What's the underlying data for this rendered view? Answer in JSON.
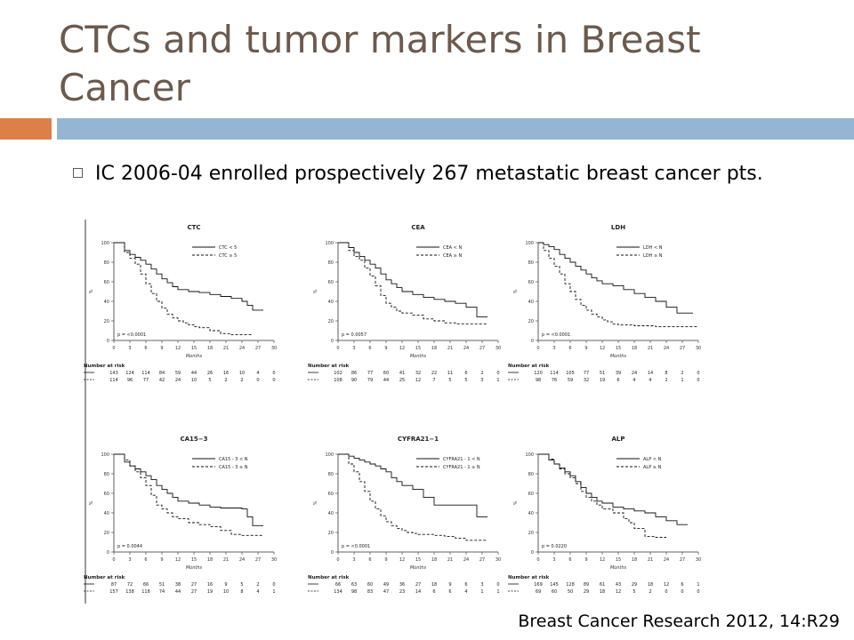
{
  "slide": {
    "title": "CTCs and tumor markers in Breast Cancer",
    "bullet": "IC 2006-04 enrolled prospectively 267 metastatic breast cancer pts.",
    "citation": "Breast Cancer Research 2012, 14:R29",
    "colors": {
      "title": "#6b5a4e",
      "accent_orange": "#dd8047",
      "accent_blue": "#94b6d2"
    }
  },
  "chart_data": [
    {
      "type": "line",
      "title": "CTC",
      "xlabel": "Months",
      "ylabel": "%",
      "xlim": [
        0,
        30
      ],
      "ylim": [
        0,
        100
      ],
      "grid": false,
      "legend_position": "top-right",
      "x_ticks": [
        "0",
        "3",
        "6",
        "9",
        "12",
        "15",
        "18",
        "21",
        "24",
        "27",
        "30"
      ],
      "y_ticks": [
        "0",
        "20",
        "40",
        "60",
        "80",
        "100"
      ],
      "p_value": "p = <0.0001",
      "series": [
        {
          "name": "CTC < 5",
          "dash": "solid",
          "x": [
            0,
            2,
            3,
            4,
            5,
            6,
            7,
            8,
            9,
            10,
            11,
            12,
            14,
            16,
            18,
            20,
            22,
            24,
            25,
            26,
            28
          ],
          "y": [
            100,
            92,
            88,
            85,
            82,
            78,
            73,
            68,
            63,
            59,
            55,
            52,
            50,
            49,
            47,
            45,
            43,
            40,
            36,
            31,
            31
          ]
        },
        {
          "name": "CTC ≥ 5",
          "dash": "dashed",
          "x": [
            0,
            2,
            3,
            4,
            5,
            6,
            7,
            8,
            9,
            10,
            11,
            12,
            13,
            14,
            15,
            16,
            18,
            20,
            22,
            24,
            26
          ],
          "y": [
            100,
            90,
            84,
            78,
            68,
            58,
            48,
            40,
            33,
            27,
            23,
            20,
            18,
            16,
            14,
            13,
            10,
            7,
            6,
            6,
            6
          ]
        }
      ],
      "risk_label": "Number at risk",
      "risk_rows": [
        [
          "143",
          "124",
          "114",
          "84",
          "59",
          "44",
          "26",
          "16",
          "10",
          "4",
          "0"
        ],
        [
          "114",
          "96",
          "77",
          "42",
          "24",
          "10",
          "5",
          "2",
          "2",
          "0",
          "0"
        ]
      ]
    },
    {
      "type": "line",
      "title": "CEA",
      "xlabel": "Months",
      "ylabel": "%",
      "xlim": [
        0,
        30
      ],
      "ylim": [
        0,
        100
      ],
      "grid": false,
      "legend_position": "top-right",
      "x_ticks": [
        "0",
        "3",
        "6",
        "9",
        "12",
        "15",
        "18",
        "21",
        "24",
        "27",
        "30"
      ],
      "y_ticks": [
        "0",
        "20",
        "40",
        "60",
        "80",
        "100"
      ],
      "p_value": "p = 0.0057",
      "series": [
        {
          "name": "CEA < N",
          "dash": "solid",
          "x": [
            0,
            2,
            3,
            4,
            5,
            6,
            7,
            8,
            9,
            10,
            11,
            12,
            14,
            16,
            18,
            20,
            22,
            24,
            26,
            28
          ],
          "y": [
            100,
            95,
            90,
            86,
            82,
            78,
            74,
            68,
            62,
            58,
            54,
            50,
            47,
            44,
            42,
            40,
            38,
            34,
            24,
            24
          ]
        },
        {
          "name": "CEA ≥ N",
          "dash": "dashed",
          "x": [
            0,
            2,
            3,
            4,
            5,
            6,
            7,
            8,
            9,
            10,
            11,
            12,
            14,
            16,
            18,
            20,
            22,
            24,
            26,
            28
          ],
          "y": [
            100,
            92,
            86,
            82,
            74,
            66,
            56,
            46,
            38,
            34,
            30,
            28,
            26,
            22,
            20,
            18,
            17,
            17,
            17,
            17
          ]
        }
      ],
      "risk_label": "Number at risk",
      "risk_rows": [
        [
          "102",
          "86",
          "77",
          "60",
          "41",
          "32",
          "22",
          "11",
          "6",
          "2",
          "0"
        ],
        [
          "108",
          "90",
          "79",
          "44",
          "25",
          "12",
          "7",
          "5",
          "5",
          "3",
          "1"
        ]
      ]
    },
    {
      "type": "line",
      "title": "LDH",
      "xlabel": "Months",
      "ylabel": "%",
      "xlim": [
        0,
        30
      ],
      "ylim": [
        0,
        100
      ],
      "grid": false,
      "legend_position": "top-right",
      "x_ticks": [
        "0",
        "3",
        "6",
        "9",
        "12",
        "15",
        "18",
        "21",
        "24",
        "27",
        "30"
      ],
      "y_ticks": [
        "0",
        "20",
        "40",
        "60",
        "80",
        "100"
      ],
      "p_value": "p = <0.0001",
      "series": [
        {
          "name": "LDH < N",
          "dash": "solid",
          "x": [
            0,
            1,
            2,
            3,
            4,
            5,
            6,
            7,
            8,
            9,
            10,
            11,
            12,
            14,
            16,
            18,
            20,
            22,
            24,
            26,
            28,
            29
          ],
          "y": [
            100,
            98,
            96,
            93,
            88,
            84,
            80,
            76,
            72,
            68,
            64,
            61,
            58,
            56,
            52,
            48,
            44,
            40,
            34,
            28,
            28,
            28
          ]
        },
        {
          "name": "LDH ≥ N",
          "dash": "dashed",
          "x": [
            0,
            1,
            2,
            3,
            4,
            5,
            6,
            7,
            8,
            9,
            10,
            11,
            12,
            13,
            14,
            15,
            16,
            18,
            20,
            22,
            24,
            27,
            30
          ],
          "y": [
            100,
            92,
            84,
            76,
            68,
            58,
            50,
            42,
            36,
            31,
            27,
            24,
            21,
            19,
            17,
            16,
            16,
            15,
            15,
            14,
            14,
            14,
            14
          ]
        }
      ],
      "risk_label": "Number at risk",
      "risk_rows": [
        [
          "120",
          "114",
          "105",
          "77",
          "51",
          "39",
          "24",
          "14",
          "8",
          "2",
          "0"
        ],
        [
          "98",
          "76",
          "59",
          "32",
          "19",
          "6",
          "4",
          "4",
          "2",
          "1",
          "0"
        ]
      ]
    },
    {
      "type": "line",
      "title": "CA15−3",
      "xlabel": "Months",
      "ylabel": "%",
      "xlim": [
        0,
        30
      ],
      "ylim": [
        0,
        100
      ],
      "grid": false,
      "legend_position": "top-right",
      "x_ticks": [
        "0",
        "3",
        "6",
        "9",
        "12",
        "15",
        "18",
        "21",
        "24",
        "27",
        "30"
      ],
      "y_ticks": [
        "0",
        "20",
        "40",
        "60",
        "80",
        "100"
      ],
      "p_value": "p = 0.0044",
      "series": [
        {
          "name": "CA15 - 3 < N",
          "dash": "solid",
          "x": [
            0,
            2,
            3,
            4,
            5,
            6,
            7,
            8,
            9,
            10,
            11,
            12,
            14,
            16,
            18,
            20,
            22,
            24,
            25,
            26,
            28
          ],
          "y": [
            100,
            92,
            88,
            85,
            82,
            78,
            74,
            68,
            64,
            60,
            56,
            52,
            50,
            48,
            46,
            45,
            45,
            44,
            36,
            27,
            27
          ]
        },
        {
          "name": "CA15 - 3 ≥ N",
          "dash": "dashed",
          "x": [
            0,
            2,
            3,
            4,
            5,
            6,
            7,
            8,
            9,
            10,
            11,
            12,
            14,
            16,
            18,
            20,
            22,
            24,
            26,
            28
          ],
          "y": [
            100,
            94,
            88,
            82,
            76,
            68,
            58,
            48,
            44,
            40,
            36,
            34,
            30,
            28,
            26,
            22,
            18,
            17,
            17,
            17
          ]
        }
      ],
      "risk_label": "Number at risk",
      "risk_rows": [
        [
          "87",
          "72",
          "66",
          "51",
          "38",
          "27",
          "16",
          "9",
          "5",
          "2",
          "0"
        ],
        [
          "157",
          "138",
          "118",
          "74",
          "44",
          "27",
          "19",
          "10",
          "8",
          "4",
          "1"
        ]
      ]
    },
    {
      "type": "line",
      "title": "CYFRA21−1",
      "xlabel": "Months",
      "ylabel": "%",
      "xlim": [
        0,
        30
      ],
      "ylim": [
        0,
        100
      ],
      "grid": false,
      "legend_position": "top-right",
      "x_ticks": [
        "0",
        "3",
        "6",
        "9",
        "12",
        "15",
        "18",
        "21",
        "24",
        "27",
        "30"
      ],
      "y_ticks": [
        "0",
        "20",
        "40",
        "60",
        "80",
        "100"
      ],
      "p_value": "p = <0.0001",
      "series": [
        {
          "name": "CYFRA21 - 1 < N",
          "dash": "solid",
          "x": [
            0,
            2,
            3,
            4,
            5,
            6,
            7,
            8,
            9,
            10,
            11,
            12,
            14,
            16,
            18,
            20,
            22,
            24,
            26,
            28
          ],
          "y": [
            100,
            98,
            96,
            94,
            92,
            90,
            88,
            85,
            82,
            76,
            72,
            68,
            64,
            56,
            48,
            48,
            48,
            48,
            36,
            36
          ]
        },
        {
          "name": "CYFRA21 - 1 ≥ N",
          "dash": "dashed",
          "x": [
            0,
            2,
            3,
            4,
            5,
            6,
            7,
            8,
            9,
            10,
            11,
            12,
            13,
            14,
            15,
            16,
            18,
            20,
            22,
            24,
            26,
            28
          ],
          "y": [
            100,
            90,
            82,
            72,
            62,
            52,
            44,
            37,
            31,
            27,
            24,
            22,
            20,
            19,
            18,
            18,
            17,
            16,
            14,
            12,
            12,
            12
          ]
        }
      ],
      "risk_label": "Number at risk",
      "risk_rows": [
        [
          "66",
          "63",
          "60",
          "49",
          "36",
          "27",
          "18",
          "9",
          "6",
          "3",
          "0"
        ],
        [
          "134",
          "98",
          "83",
          "47",
          "23",
          "14",
          "6",
          "6",
          "4",
          "1",
          "1"
        ]
      ]
    },
    {
      "type": "line",
      "title": "ALP",
      "xlabel": "Months",
      "ylabel": "%",
      "xlim": [
        0,
        30
      ],
      "ylim": [
        0,
        100
      ],
      "grid": false,
      "legend_position": "top-right",
      "x_ticks": [
        "0",
        "3",
        "6",
        "9",
        "12",
        "15",
        "18",
        "21",
        "24",
        "27",
        "30"
      ],
      "y_ticks": [
        "0",
        "20",
        "40",
        "60",
        "80",
        "100"
      ],
      "p_value": "p = 0.0220",
      "series": [
        {
          "name": "ALP < N",
          "dash": "solid",
          "x": [
            0,
            2,
            3,
            4,
            5,
            6,
            7,
            8,
            9,
            10,
            11,
            12,
            14,
            16,
            18,
            20,
            22,
            24,
            26,
            28
          ],
          "y": [
            100,
            94,
            90,
            86,
            82,
            78,
            72,
            66,
            60,
            56,
            52,
            50,
            46,
            44,
            42,
            40,
            36,
            32,
            28,
            28
          ]
        },
        {
          "name": "ALP ≥ N",
          "dash": "dashed",
          "x": [
            0,
            2,
            3,
            4,
            5,
            6,
            7,
            8,
            9,
            10,
            11,
            12,
            14,
            16,
            17,
            18,
            20,
            22,
            24
          ],
          "y": [
            100,
            95,
            90,
            85,
            80,
            76,
            70,
            62,
            56,
            52,
            48,
            44,
            40,
            34,
            30,
            24,
            16,
            15,
            15
          ]
        }
      ],
      "risk_label": "Number at risk",
      "risk_rows": [
        [
          "169",
          "145",
          "128",
          "89",
          "61",
          "43",
          "29",
          "18",
          "12",
          "6",
          "1"
        ],
        [
          "69",
          "60",
          "50",
          "29",
          "18",
          "12",
          "5",
          "2",
          "0",
          "0",
          "0"
        ]
      ]
    }
  ]
}
